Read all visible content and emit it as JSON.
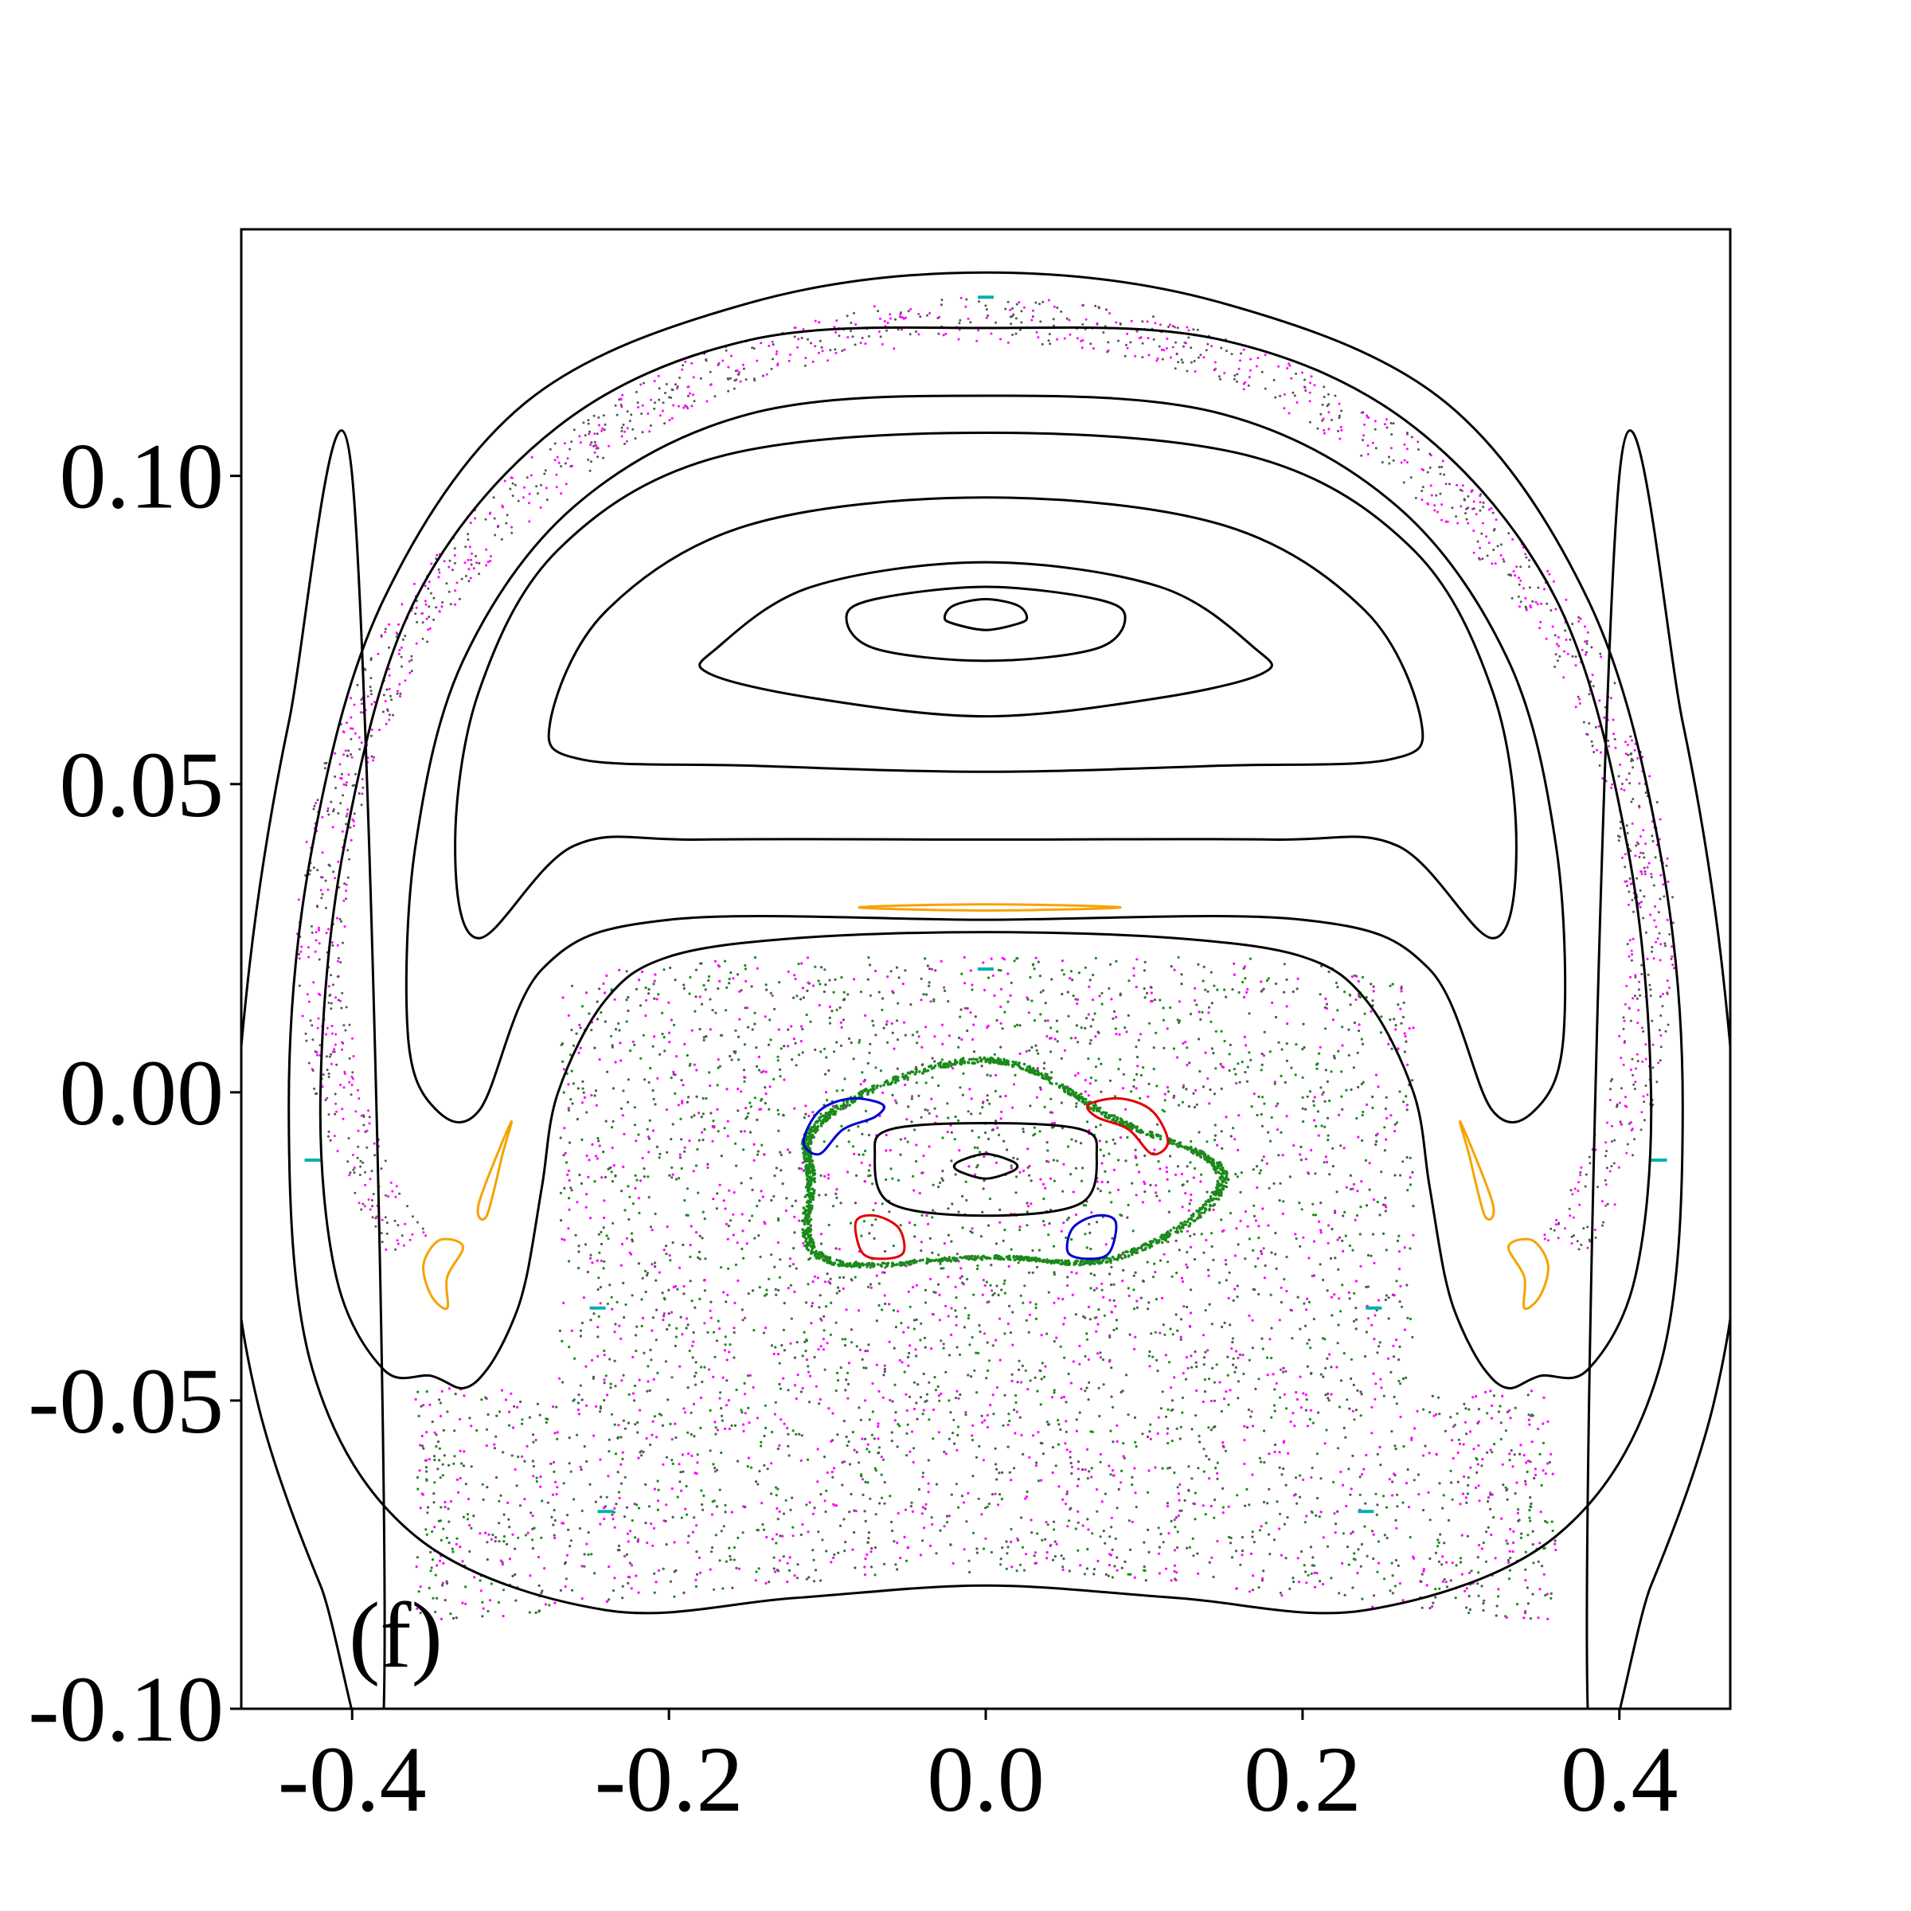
{
  "chart_data": {
    "type": "scatter",
    "panel_label": "(f)",
    "xlim": [
      -0.47,
      0.47
    ],
    "ylim": [
      -0.1,
      0.14
    ],
    "xticks": [
      -0.4,
      -0.2,
      0.0,
      0.2,
      0.4
    ],
    "xtick_labels": [
      "-0.4",
      "-0.2",
      "0.0",
      "0.2",
      "0.4"
    ],
    "yticks": [
      -0.1,
      -0.05,
      0.0,
      0.05,
      0.1
    ],
    "ytick_labels": [
      "-0.10",
      "-0.05",
      "0.00",
      "0.05",
      "0.10"
    ],
    "grid": false,
    "colors": {
      "black": "#000000",
      "orange": "#f5a300",
      "magenta": "#ff00ff",
      "gray": "#555555",
      "green": "#1a8a1a",
      "red": "#e00000",
      "blue": "#0000d0",
      "cyan": "#00b0b0"
    },
    "series": [
      {
        "color": "black",
        "kind": "closed-curve",
        "points": [
          [
            -0.4,
            0.1
          ],
          [
            -0.44,
            0.06
          ],
          [
            -0.465,
            0.02
          ],
          [
            -0.475,
            -0.02
          ],
          [
            -0.46,
            -0.05
          ],
          [
            -0.42,
            -0.08
          ],
          [
            -0.38,
            -0.1
          ]
        ]
      },
      {
        "color": "black",
        "kind": "closed-curve",
        "points": [
          [
            0.4,
            0.1
          ],
          [
            0.44,
            0.06
          ],
          [
            0.465,
            0.02
          ],
          [
            0.475,
            -0.02
          ],
          [
            0.46,
            -0.05
          ],
          [
            0.42,
            -0.08
          ],
          [
            0.38,
            -0.1
          ]
        ]
      },
      {
        "color": "black",
        "kind": "closed-curve",
        "points": [
          [
            0.0,
            0.133
          ],
          [
            0.15,
            0.128
          ],
          [
            0.29,
            0.112
          ],
          [
            0.38,
            0.08
          ],
          [
            0.425,
            0.04
          ],
          [
            0.44,
            -0.002
          ],
          [
            0.425,
            -0.045
          ],
          [
            0.36,
            -0.072
          ],
          [
            0.24,
            -0.084
          ],
          [
            0.12,
            -0.082
          ],
          [
            0.0,
            -0.08
          ],
          [
            -0.12,
            -0.082
          ],
          [
            -0.24,
            -0.084
          ],
          [
            -0.36,
            -0.072
          ],
          [
            -0.425,
            -0.045
          ],
          [
            -0.44,
            -0.002
          ],
          [
            -0.425,
            0.04
          ],
          [
            -0.38,
            0.08
          ],
          [
            -0.29,
            0.112
          ],
          [
            -0.15,
            0.128
          ]
        ]
      },
      {
        "color": "black",
        "kind": "closed-curve",
        "points": [
          [
            0.0,
            0.124
          ],
          [
            0.15,
            0.122
          ],
          [
            0.27,
            0.108
          ],
          [
            0.36,
            0.08
          ],
          [
            0.405,
            0.04
          ],
          [
            0.42,
            0.0
          ],
          [
            0.41,
            -0.03
          ],
          [
            0.38,
            -0.045
          ],
          [
            0.35,
            -0.046
          ],
          [
            0.33,
            -0.048
          ],
          [
            0.315,
            -0.045
          ],
          [
            0.3,
            -0.038
          ],
          [
            0.29,
            -0.03
          ],
          [
            0.28,
            -0.015
          ],
          [
            0.27,
            0.0
          ],
          [
            0.24,
            0.015
          ],
          [
            0.2,
            0.022
          ],
          [
            0.12,
            0.025
          ],
          [
            0.0,
            0.026
          ],
          [
            -0.12,
            0.025
          ],
          [
            -0.2,
            0.022
          ],
          [
            -0.24,
            0.015
          ],
          [
            -0.27,
            0.0
          ],
          [
            -0.28,
            -0.015
          ],
          [
            -0.29,
            -0.03
          ],
          [
            -0.3,
            -0.038
          ],
          [
            -0.315,
            -0.045
          ],
          [
            -0.33,
            -0.048
          ],
          [
            -0.35,
            -0.046
          ],
          [
            -0.38,
            -0.045
          ],
          [
            -0.41,
            -0.03
          ],
          [
            -0.42,
            0.0
          ],
          [
            -0.405,
            0.04
          ],
          [
            -0.36,
            0.08
          ],
          [
            -0.27,
            0.108
          ],
          [
            -0.15,
            0.122
          ]
        ]
      },
      {
        "color": "black",
        "kind": "closed-curve",
        "points": [
          [
            0.0,
            0.113
          ],
          [
            0.15,
            0.11
          ],
          [
            0.26,
            0.095
          ],
          [
            0.33,
            0.07
          ],
          [
            0.36,
            0.04
          ],
          [
            0.365,
            0.01
          ],
          [
            0.35,
            -0.002
          ],
          [
            0.32,
            -0.003
          ],
          [
            0.28,
            0.02
          ],
          [
            0.2,
            0.028
          ],
          [
            0.0,
            0.028
          ],
          [
            -0.2,
            0.028
          ],
          [
            -0.28,
            0.02
          ],
          [
            -0.32,
            -0.003
          ],
          [
            -0.35,
            -0.002
          ],
          [
            -0.365,
            0.01
          ],
          [
            -0.36,
            0.04
          ],
          [
            -0.33,
            0.07
          ],
          [
            -0.26,
            0.095
          ],
          [
            -0.15,
            0.11
          ]
        ]
      },
      {
        "color": "black",
        "kind": "closed-curve",
        "points": [
          [
            0.0,
            0.107
          ],
          [
            0.17,
            0.103
          ],
          [
            0.27,
            0.088
          ],
          [
            0.32,
            0.065
          ],
          [
            0.335,
            0.04
          ],
          [
            0.32,
            0.025
          ],
          [
            0.26,
            0.04
          ],
          [
            0.18,
            0.041
          ],
          [
            0.0,
            0.041
          ],
          [
            -0.18,
            0.041
          ],
          [
            -0.26,
            0.04
          ],
          [
            -0.32,
            0.025
          ],
          [
            -0.335,
            0.04
          ],
          [
            -0.32,
            0.065
          ],
          [
            -0.27,
            0.088
          ],
          [
            -0.17,
            0.103
          ]
        ]
      },
      {
        "color": "black",
        "kind": "closed-curve",
        "points": [
          [
            0.0,
            0.0965
          ],
          [
            0.15,
            0.092
          ],
          [
            0.24,
            0.078
          ],
          [
            0.275,
            0.06
          ],
          [
            0.255,
            0.054
          ],
          [
            0.15,
            0.053
          ],
          [
            0.0,
            0.052
          ],
          [
            -0.15,
            0.053
          ],
          [
            -0.255,
            0.054
          ],
          [
            -0.275,
            0.06
          ],
          [
            -0.24,
            0.078
          ],
          [
            -0.15,
            0.092
          ]
        ]
      },
      {
        "color": "black",
        "kind": "closed-curve",
        "points": [
          [
            0.0,
            0.086
          ],
          [
            0.11,
            0.082
          ],
          [
            0.17,
            0.072
          ],
          [
            0.175,
            0.068
          ],
          [
            0.11,
            0.064
          ],
          [
            0.0,
            0.061
          ],
          [
            -0.11,
            0.064
          ],
          [
            -0.175,
            0.068
          ],
          [
            -0.17,
            0.072
          ],
          [
            -0.11,
            0.082
          ]
        ]
      },
      {
        "color": "black",
        "kind": "closed-curve",
        "points": [
          [
            0.0,
            0.082
          ],
          [
            0.07,
            0.08
          ],
          [
            0.088,
            0.077
          ],
          [
            0.07,
            0.072
          ],
          [
            0.0,
            0.07
          ],
          [
            -0.07,
            0.072
          ],
          [
            -0.088,
            0.077
          ],
          [
            -0.07,
            0.08
          ]
        ]
      },
      {
        "color": "black",
        "kind": "closed-curve",
        "points": [
          [
            0.0,
            0.08
          ],
          [
            0.02,
            0.079
          ],
          [
            0.026,
            0.077
          ],
          [
            0.02,
            0.076
          ],
          [
            0.0,
            0.075
          ],
          [
            -0.02,
            0.076
          ],
          [
            -0.026,
            0.077
          ],
          [
            -0.02,
            0.079
          ]
        ]
      },
      {
        "color": "black",
        "kind": "closed-curve",
        "points": [
          [
            0.0,
            -0.005
          ],
          [
            0.06,
            -0.006
          ],
          [
            0.07,
            -0.01
          ],
          [
            0.06,
            -0.018
          ],
          [
            0.0,
            -0.02
          ],
          [
            -0.06,
            -0.018
          ],
          [
            -0.07,
            -0.01
          ],
          [
            -0.06,
            -0.006
          ]
        ]
      },
      {
        "color": "black",
        "kind": "closed-curve",
        "points": [
          [
            0.0,
            -0.01
          ],
          [
            0.015,
            -0.011
          ],
          [
            0.02,
            -0.012
          ],
          [
            0.015,
            -0.013
          ],
          [
            0.0,
            -0.014
          ],
          [
            -0.015,
            -0.013
          ],
          [
            -0.02,
            -0.012
          ],
          [
            -0.015,
            -0.011
          ]
        ]
      },
      {
        "color": "orange",
        "kind": "closed-curve",
        "points": [
          [
            -0.33,
            -0.025
          ],
          [
            -0.34,
            -0.03
          ],
          [
            -0.34,
            -0.035
          ],
          [
            -0.35,
            -0.033
          ],
          [
            -0.355,
            -0.028
          ],
          [
            -0.345,
            -0.024
          ]
        ]
      },
      {
        "color": "orange",
        "kind": "closed-curve",
        "points": [
          [
            0.33,
            -0.025
          ],
          [
            0.34,
            -0.03
          ],
          [
            0.34,
            -0.035
          ],
          [
            0.35,
            -0.033
          ],
          [
            0.355,
            -0.028
          ],
          [
            0.345,
            -0.024
          ]
        ]
      },
      {
        "color": "orange",
        "kind": "closed-curve",
        "points": [
          [
            -0.3,
            -0.005
          ],
          [
            -0.32,
            -0.018
          ],
          [
            -0.315,
            -0.02
          ],
          [
            -0.305,
            -0.01
          ]
        ]
      },
      {
        "color": "orange",
        "kind": "closed-curve",
        "points": [
          [
            0.3,
            -0.005
          ],
          [
            0.32,
            -0.018
          ],
          [
            0.315,
            -0.02
          ],
          [
            0.305,
            -0.01
          ]
        ]
      },
      {
        "color": "orange",
        "kind": "closed-curve",
        "points": [
          [
            -0.08,
            0.03
          ],
          [
            0.0,
            0.0295
          ],
          [
            0.085,
            0.03
          ],
          [
            0.0,
            0.0305
          ]
        ]
      },
      {
        "color": "red",
        "kind": "closed-curve",
        "points": [
          [
            0.065,
            -0.002
          ],
          [
            0.085,
            -0.001
          ],
          [
            0.105,
            -0.003
          ],
          [
            0.115,
            -0.008
          ],
          [
            0.105,
            -0.01
          ],
          [
            0.09,
            -0.006
          ],
          [
            0.07,
            -0.004
          ]
        ]
      },
      {
        "color": "red",
        "kind": "closed-curve",
        "points": [
          [
            -0.082,
            -0.021
          ],
          [
            -0.078,
            -0.026
          ],
          [
            -0.065,
            -0.027
          ],
          [
            -0.052,
            -0.026
          ],
          [
            -0.055,
            -0.022
          ],
          [
            -0.07,
            -0.02
          ]
        ]
      },
      {
        "color": "blue",
        "kind": "closed-curve",
        "points": [
          [
            -0.065,
            -0.002
          ],
          [
            -0.085,
            -0.001
          ],
          [
            -0.105,
            -0.003
          ],
          [
            -0.115,
            -0.008
          ],
          [
            -0.105,
            -0.01
          ],
          [
            -0.09,
            -0.006
          ],
          [
            -0.07,
            -0.004
          ]
        ]
      },
      {
        "color": "blue",
        "kind": "closed-curve",
        "points": [
          [
            0.082,
            -0.021
          ],
          [
            0.078,
            -0.026
          ],
          [
            0.065,
            -0.027
          ],
          [
            0.052,
            -0.026
          ],
          [
            0.055,
            -0.022
          ],
          [
            0.07,
            -0.02
          ]
        ]
      }
    ],
    "islands_cyan": [
      [
        0.0,
        0.129
      ],
      [
        0.0,
        0.02
      ],
      [
        -0.425,
        -0.011
      ],
      [
        0.425,
        -0.011
      ],
      [
        -0.245,
        -0.035
      ],
      [
        0.245,
        -0.035
      ],
      [
        -0.24,
        -0.068
      ],
      [
        0.24,
        -0.068
      ]
    ]
  }
}
